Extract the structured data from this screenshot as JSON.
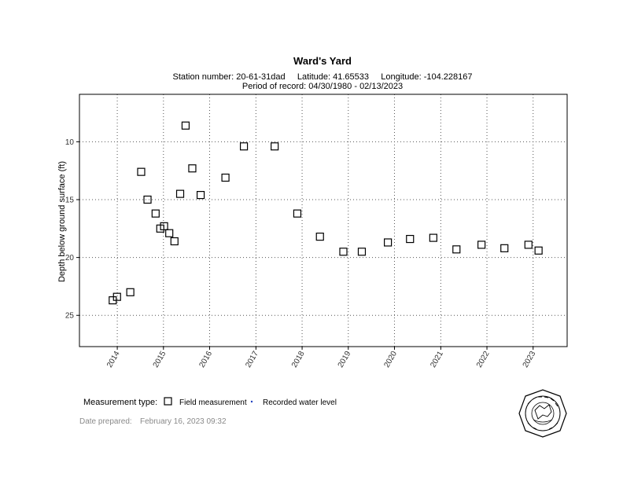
{
  "header": {
    "title": "Ward's Yard",
    "station_line": "Station number: 20-61-31dad     Latitude: 41.65533     Longitude: -104.228167",
    "period_line": "Period of record: 04/30/1980 - 02/13/2023"
  },
  "legend": {
    "title": "Measurement type:",
    "field_label": "Field measurement",
    "recorded_label": "Recorded water level"
  },
  "footer": {
    "date_label": "Date prepared:",
    "date_value": "February 16, 2023 09:32"
  },
  "colors": {
    "marker": "#000000",
    "recorded_marker": "#1f3fbf",
    "grid": "#555555",
    "date_text": "#8a8a8a"
  },
  "logo": {
    "icon": "state-engineer-seal-icon"
  },
  "chart_data": {
    "type": "scatter",
    "ylabel": "Depth below ground surface (ft)",
    "y_reversed": true,
    "ylim": [
      5.9,
      27.7
    ],
    "xlim": [
      "2013-03-08",
      "2023-09-27"
    ],
    "y_ticks": [
      10,
      15,
      20,
      25
    ],
    "x_ticks": [
      "2014",
      "2015",
      "2016",
      "2017",
      "2018",
      "2019",
      "2020",
      "2021",
      "2022",
      "2023"
    ],
    "grid": true,
    "marker": "open-square",
    "series": [
      {
        "name": "Field measurement",
        "points": [
          {
            "x": "2013-11-26",
            "y": 23.7
          },
          {
            "x": "2013-12-30",
            "y": 23.4
          },
          {
            "x": "2014-04-14",
            "y": 23.0
          },
          {
            "x": "2014-07-09",
            "y": 12.6
          },
          {
            "x": "2014-08-28",
            "y": 15.0
          },
          {
            "x": "2014-10-31",
            "y": 16.2
          },
          {
            "x": "2014-12-07",
            "y": 17.5
          },
          {
            "x": "2015-01-06",
            "y": 17.3
          },
          {
            "x": "2015-02-16",
            "y": 17.9
          },
          {
            "x": "2015-03-29",
            "y": 18.6
          },
          {
            "x": "2015-05-13",
            "y": 14.5
          },
          {
            "x": "2015-06-25",
            "y": 8.6
          },
          {
            "x": "2015-08-17",
            "y": 12.3
          },
          {
            "x": "2015-10-22",
            "y": 14.6
          },
          {
            "x": "2016-05-05",
            "y": 13.1
          },
          {
            "x": "2016-09-28",
            "y": 10.4
          },
          {
            "x": "2017-05-29",
            "y": 10.4
          },
          {
            "x": "2017-11-24",
            "y": 16.2
          },
          {
            "x": "2018-05-22",
            "y": 18.2
          },
          {
            "x": "2018-11-23",
            "y": 19.5
          },
          {
            "x": "2019-04-18",
            "y": 19.5
          },
          {
            "x": "2019-11-10",
            "y": 18.7
          },
          {
            "x": "2020-05-03",
            "y": 18.4
          },
          {
            "x": "2020-11-03",
            "y": 18.3
          },
          {
            "x": "2021-05-05",
            "y": 19.3
          },
          {
            "x": "2021-11-19",
            "y": 18.9
          },
          {
            "x": "2022-05-19",
            "y": 19.2
          },
          {
            "x": "2022-11-25",
            "y": 18.9
          },
          {
            "x": "2023-02-13",
            "y": 19.4
          }
        ]
      }
    ]
  }
}
